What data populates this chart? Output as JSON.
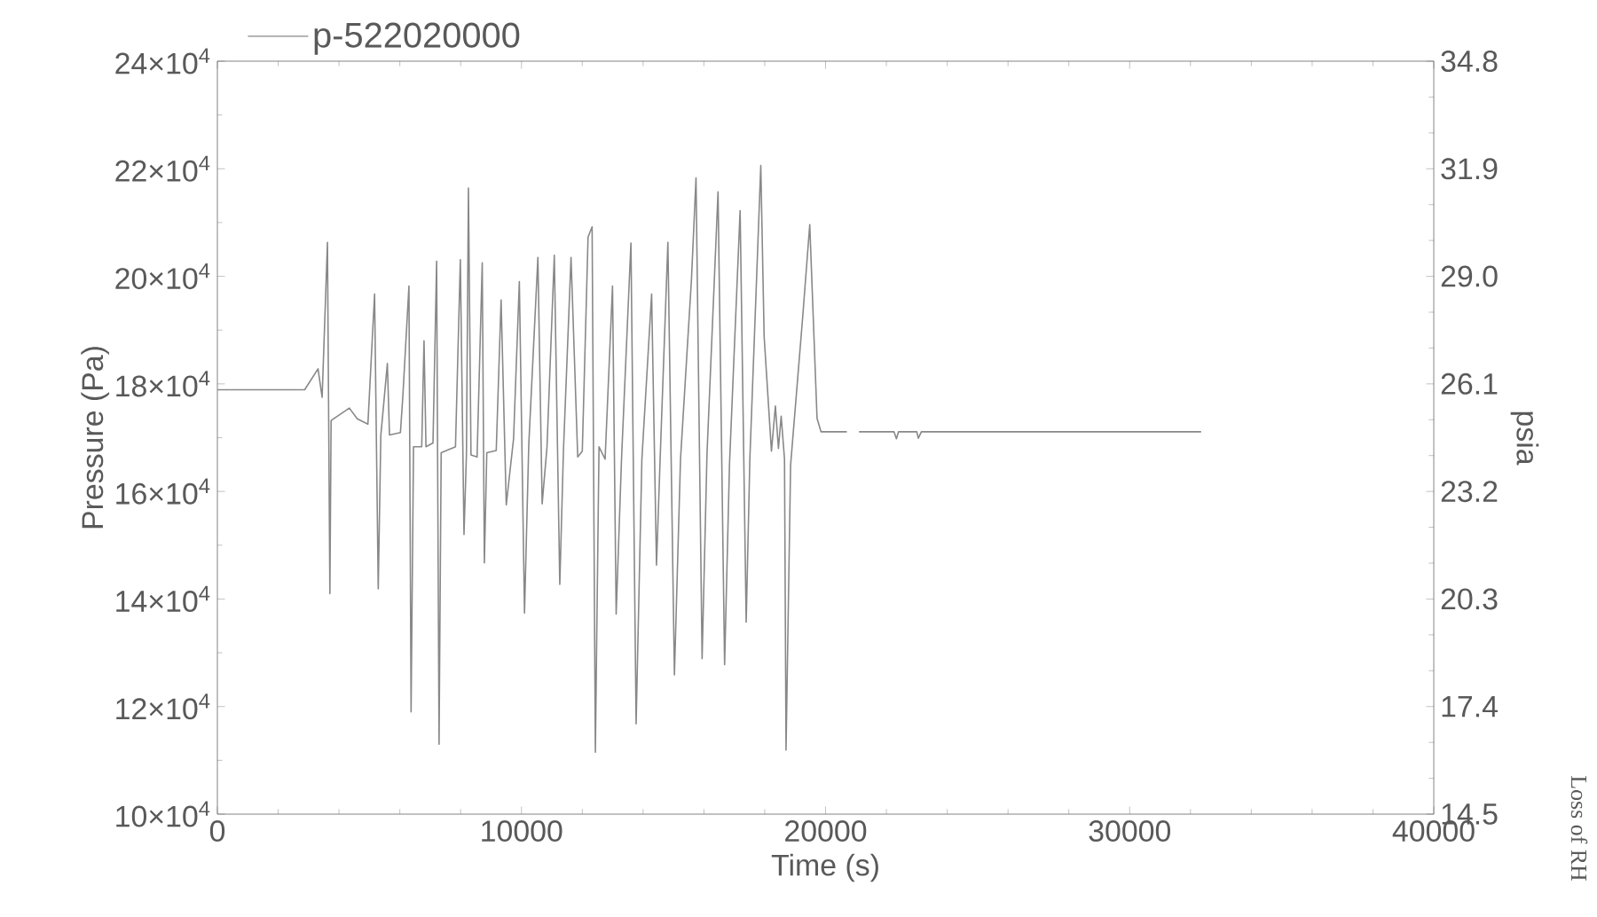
{
  "chart_data": {
    "type": "line",
    "xlabel": "Time (s)",
    "ylabel": "Pressure (Pa)",
    "y2label": "psia",
    "annotations": [
      "Loss of RH"
    ],
    "xlim": [
      0,
      40000
    ],
    "xticks": [
      0,
      10000,
      20000,
      30000,
      40000
    ],
    "ylim": [
      100000,
      240000
    ],
    "yticks": [
      {
        "value": 100000,
        "label": "10×10$^{4}$"
      },
      {
        "value": 120000,
        "label": "12×10$^{4}$"
      },
      {
        "value": 140000,
        "label": "14×10$^{4}$"
      },
      {
        "value": 160000,
        "label": "16×10$^{4}$"
      },
      {
        "value": 180000,
        "label": "18×10$^{4}$"
      },
      {
        "value": 200000,
        "label": "20×10$^{4}$"
      },
      {
        "value": 220000,
        "label": "22×10$^{4}$"
      },
      {
        "value": 240000,
        "label": "24×10$^{4}$"
      }
    ],
    "y2lim": [
      14.5,
      34.8
    ],
    "y2ticks": [
      14.5,
      17.4,
      20.3,
      23.2,
      26.1,
      {
        "value": 29.0,
        "label": "29.0"
      },
      31.9,
      34.8
    ],
    "legend": "top left",
    "marker": "none",
    "line_style": "solid",
    "series": [
      {
        "name": "p-522020000",
        "color": "#888888",
        "x": [
          0,
          2870,
          3310,
          3445,
          3620,
          3700,
          3740,
          4340,
          4600,
          4950,
          5170,
          5290,
          5375,
          5590,
          5660,
          6020,
          6100,
          6300,
          6370,
          6450,
          6720,
          6795,
          6860,
          7090,
          7210,
          7290,
          7360,
          7830,
          7990,
          8110,
          8190,
          8256,
          8340,
          8540,
          8710,
          8780,
          8860,
          9170,
          9330,
          9500,
          9740,
          9930,
          10100,
          10240,
          10540,
          10680,
          10840,
          11080,
          11260,
          11380,
          11630,
          11850,
          12000,
          12190,
          12323,
          12430,
          12550,
          12750,
          12994,
          13114,
          13290,
          13600,
          13770,
          13960,
          14280,
          14440,
          14560,
          14815,
          15030,
          15230,
          15590,
          15740,
          15940,
          16100,
          16464,
          16680,
          16840,
          17190,
          17390,
          17510,
          17870,
          17980,
          18220,
          18350,
          18450,
          18540,
          18650,
          18700,
          18850,
          19250,
          19480,
          19720,
          19850,
          20700,
          20850,
          21100,
          22250,
          22330,
          22400,
          23000,
          23050,
          23150,
          32350
        ],
        "values": [
          178900,
          178900,
          182800,
          177500,
          206300,
          141000,
          173200,
          175500,
          173500,
          172500,
          196700,
          141900,
          170400,
          183800,
          170500,
          170950,
          177800,
          198200,
          119000,
          168300,
          168300,
          188000,
          168300,
          169000,
          202800,
          113000,
          167200,
          168300,
          203100,
          152000,
          166800,
          216400,
          166800,
          166400,
          202500,
          146700,
          167200,
          167600,
          195600,
          157500,
          169800,
          199000,
          137400,
          168700,
          203500,
          157700,
          168300,
          203900,
          142700,
          167500,
          203500,
          166400,
          167500,
          207300,
          209200,
          111500,
          168300,
          166000,
          198200,
          137200,
          166000,
          206200,
          116800,
          166000,
          196700,
          146300,
          166000,
          206300,
          125900,
          166000,
          199400,
          218300,
          128900,
          166800,
          215700,
          127800,
          164900,
          212200,
          135700,
          166000,
          220600,
          188800,
          167500,
          175900,
          168000,
          174000,
          166000,
          111900,
          164900,
          192600,
          209600,
          173600,
          171100,
          171100,
          null,
          171100,
          171100,
          169800,
          171100,
          171100,
          169900,
          171100,
          171100
        ]
      }
    ]
  }
}
